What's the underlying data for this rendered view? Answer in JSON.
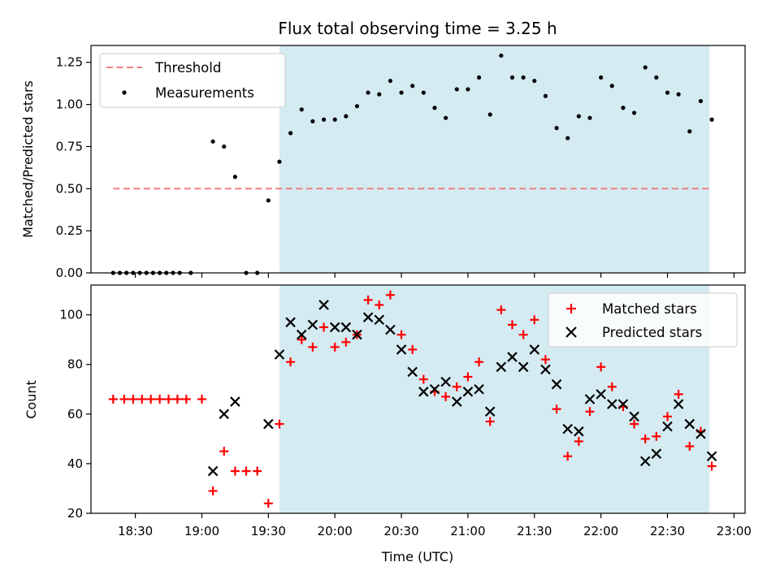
{
  "chart_data": [
    {
      "type": "scatter",
      "title": "Flux total observing time = 3.25 h",
      "xlabel": "",
      "ylabel": "Matched/Predicted stars",
      "x_unit": "Time (UTC)",
      "xlim": [
        "18:10",
        "23:05"
      ],
      "ylim": [
        0,
        1.35
      ],
      "y_ticks": [
        0.0,
        0.25,
        0.5,
        0.75,
        1.0,
        1.25
      ],
      "y_tick_labels": [
        "0.00",
        "0.25",
        "0.50",
        "0.75",
        "1.00",
        "1.25"
      ],
      "shaded_region": {
        "from": "19:35",
        "to": "22:49",
        "color": "#add8e6"
      },
      "legend_position": "top-left",
      "threshold": {
        "name": "Threshold",
        "value": 0.5,
        "from": "18:20",
        "to": "22:49",
        "color": "#f08080",
        "style": "dashed"
      },
      "series": [
        {
          "name": "Measurements",
          "marker": "dot",
          "color": "#000000",
          "points": [
            [
              "18:20",
              0.0
            ],
            [
              "18:23",
              0.0
            ],
            [
              "18:26",
              0.0
            ],
            [
              "18:29",
              0.0
            ],
            [
              "18:32",
              0.0
            ],
            [
              "18:35",
              0.0
            ],
            [
              "18:38",
              0.0
            ],
            [
              "18:41",
              0.0
            ],
            [
              "18:44",
              0.0
            ],
            [
              "18:47",
              0.0
            ],
            [
              "18:50",
              0.0
            ],
            [
              "18:55",
              0.0
            ],
            [
              "19:05",
              0.78
            ],
            [
              "19:10",
              0.75
            ],
            [
              "19:15",
              0.57
            ],
            [
              "19:20",
              0.0
            ],
            [
              "19:25",
              0.0
            ],
            [
              "19:30",
              0.43
            ],
            [
              "19:35",
              0.66
            ],
            [
              "19:40",
              0.83
            ],
            [
              "19:45",
              0.97
            ],
            [
              "19:50",
              0.9
            ],
            [
              "19:55",
              0.91
            ],
            [
              "20:00",
              0.91
            ],
            [
              "20:05",
              0.93
            ],
            [
              "20:10",
              0.99
            ],
            [
              "20:15",
              1.07
            ],
            [
              "20:20",
              1.06
            ],
            [
              "20:25",
              1.14
            ],
            [
              "20:30",
              1.07
            ],
            [
              "20:35",
              1.11
            ],
            [
              "20:40",
              1.07
            ],
            [
              "20:45",
              0.98
            ],
            [
              "20:50",
              0.92
            ],
            [
              "20:55",
              1.09
            ],
            [
              "21:00",
              1.09
            ],
            [
              "21:05",
              1.16
            ],
            [
              "21:10",
              0.94
            ],
            [
              "21:15",
              1.29
            ],
            [
              "21:20",
              1.16
            ],
            [
              "21:25",
              1.16
            ],
            [
              "21:30",
              1.14
            ],
            [
              "21:35",
              1.05
            ],
            [
              "21:40",
              0.86
            ],
            [
              "21:45",
              0.8
            ],
            [
              "21:50",
              0.93
            ],
            [
              "21:55",
              0.92
            ],
            [
              "22:00",
              1.16
            ],
            [
              "22:05",
              1.11
            ],
            [
              "22:10",
              0.98
            ],
            [
              "22:15",
              0.95
            ],
            [
              "22:20",
              1.22
            ],
            [
              "22:25",
              1.16
            ],
            [
              "22:30",
              1.07
            ],
            [
              "22:35",
              1.06
            ],
            [
              "22:40",
              0.84
            ],
            [
              "22:45",
              1.02
            ],
            [
              "22:50",
              0.91
            ]
          ]
        }
      ]
    },
    {
      "type": "scatter",
      "title": "",
      "xlabel": "Time (UTC)",
      "ylabel": "Count",
      "xlim": [
        "18:10",
        "23:05"
      ],
      "ylim": [
        20,
        112
      ],
      "y_ticks": [
        20,
        40,
        60,
        80,
        100
      ],
      "y_tick_labels": [
        "20",
        "40",
        "60",
        "80",
        "100"
      ],
      "x_ticks": [
        "18:30",
        "19:00",
        "19:30",
        "20:00",
        "20:30",
        "21:00",
        "21:30",
        "22:00",
        "22:30",
        "23:00"
      ],
      "shaded_region": {
        "from": "19:35",
        "to": "22:49",
        "color": "#add8e6"
      },
      "legend_position": "top-right",
      "series": [
        {
          "name": "Matched stars",
          "marker": "plus",
          "color": "#ff0000",
          "points": [
            [
              "18:20",
              66
            ],
            [
              "18:25",
              66
            ],
            [
              "18:29",
              66
            ],
            [
              "18:33",
              66
            ],
            [
              "18:37",
              66
            ],
            [
              "18:41",
              66
            ],
            [
              "18:45",
              66
            ],
            [
              "18:49",
              66
            ],
            [
              "18:53",
              66
            ],
            [
              "19:00",
              66
            ],
            [
              "19:05",
              29
            ],
            [
              "19:10",
              45
            ],
            [
              "19:15",
              37
            ],
            [
              "19:20",
              37
            ],
            [
              "19:25",
              37
            ],
            [
              "19:30",
              24
            ],
            [
              "19:35",
              56
            ],
            [
              "19:40",
              81
            ],
            [
              "19:45",
              90
            ],
            [
              "19:50",
              87
            ],
            [
              "19:55",
              95
            ],
            [
              "20:00",
              87
            ],
            [
              "20:05",
              89
            ],
            [
              "20:10",
              92
            ],
            [
              "20:15",
              106
            ],
            [
              "20:20",
              104
            ],
            [
              "20:25",
              108
            ],
            [
              "20:30",
              92
            ],
            [
              "20:35",
              86
            ],
            [
              "20:40",
              74
            ],
            [
              "20:45",
              69
            ],
            [
              "20:50",
              67
            ],
            [
              "20:55",
              71
            ],
            [
              "21:00",
              75
            ],
            [
              "21:05",
              81
            ],
            [
              "21:10",
              57
            ],
            [
              "21:15",
              102
            ],
            [
              "21:20",
              96
            ],
            [
              "21:25",
              92
            ],
            [
              "21:30",
              98
            ],
            [
              "21:35",
              82
            ],
            [
              "21:40",
              62
            ],
            [
              "21:45",
              43
            ],
            [
              "21:50",
              49
            ],
            [
              "21:55",
              61
            ],
            [
              "22:00",
              79
            ],
            [
              "22:05",
              71
            ],
            [
              "22:10",
              63
            ],
            [
              "22:15",
              56
            ],
            [
              "22:20",
              50
            ],
            [
              "22:25",
              51
            ],
            [
              "22:30",
              59
            ],
            [
              "22:35",
              68
            ],
            [
              "22:40",
              47
            ],
            [
              "22:45",
              53
            ],
            [
              "22:50",
              39
            ]
          ]
        },
        {
          "name": "Predicted stars",
          "marker": "x",
          "color": "#000000",
          "points": [
            [
              "19:05",
              37
            ],
            [
              "19:10",
              60
            ],
            [
              "19:15",
              65
            ],
            [
              "19:30",
              56
            ],
            [
              "19:35",
              84
            ],
            [
              "19:40",
              97
            ],
            [
              "19:45",
              92
            ],
            [
              "19:50",
              96
            ],
            [
              "19:55",
              104
            ],
            [
              "20:00",
              95
            ],
            [
              "20:05",
              95
            ],
            [
              "20:10",
              92
            ],
            [
              "20:15",
              99
            ],
            [
              "20:20",
              98
            ],
            [
              "20:25",
              94
            ],
            [
              "20:30",
              86
            ],
            [
              "20:35",
              77
            ],
            [
              "20:40",
              69
            ],
            [
              "20:45",
              70
            ],
            [
              "20:50",
              73
            ],
            [
              "20:55",
              65
            ],
            [
              "21:00",
              69
            ],
            [
              "21:05",
              70
            ],
            [
              "21:10",
              61
            ],
            [
              "21:15",
              79
            ],
            [
              "21:20",
              83
            ],
            [
              "21:25",
              79
            ],
            [
              "21:30",
              86
            ],
            [
              "21:35",
              78
            ],
            [
              "21:40",
              72
            ],
            [
              "21:45",
              54
            ],
            [
              "21:50",
              53
            ],
            [
              "21:55",
              66
            ],
            [
              "22:00",
              68
            ],
            [
              "22:05",
              64
            ],
            [
              "22:10",
              64
            ],
            [
              "22:15",
              59
            ],
            [
              "22:20",
              41
            ],
            [
              "22:25",
              44
            ],
            [
              "22:30",
              55
            ],
            [
              "22:35",
              64
            ],
            [
              "22:40",
              56
            ],
            [
              "22:45",
              52
            ],
            [
              "22:50",
              43
            ]
          ]
        }
      ]
    }
  ]
}
